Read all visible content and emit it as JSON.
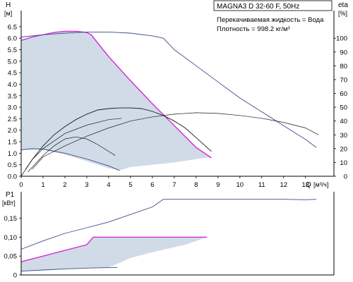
{
  "chart_data": [
    {
      "type": "line",
      "title": "MAGNA3 D 32-60 F, 50Hz",
      "annotations": [
        "Перекачиваемая жидкость = Вода",
        "Плотность = 998.2 кг/м³"
      ],
      "ylabel": "H",
      "yunit": "[м]",
      "xlabel": "Q",
      "xunit": "[м³/ч]",
      "y2label": "eta",
      "y2unit": "[%]",
      "xlim": [
        0,
        14.3
      ],
      "ylim": [
        0,
        7.2
      ],
      "y2lim": [
        0,
        120
      ],
      "xticks": [
        0,
        1,
        2,
        3,
        4,
        5,
        6,
        7,
        8,
        9,
        10,
        11,
        12,
        13
      ],
      "yticks": [
        "0.0",
        "0.5",
        "1.0",
        "1.5",
        "2.0",
        "2.5",
        "3.0",
        "3.5",
        "4.0",
        "4.5",
        "5.0",
        "5.5",
        "6.0",
        "6.5"
      ],
      "y2ticks": [
        0,
        10,
        20,
        30,
        40,
        50,
        60,
        70,
        80,
        90,
        100
      ],
      "grid": false,
      "colors": {
        "operating_area": "#d0dbe7",
        "max_curve": "#d11ed1",
        "pump_curve": "#3a4d8a",
        "eta_curve": "#1a1a1a"
      },
      "series": [
        {
          "role": "operating-area-fill",
          "x": [
            0,
            0.5,
            1,
            1.5,
            2,
            2.5,
            3,
            3.2,
            4,
            5,
            6,
            7,
            8,
            8.7,
            8.4,
            7,
            6,
            5,
            4.5,
            4,
            3,
            2,
            1,
            0
          ],
          "y": [
            5.9,
            6.05,
            6.15,
            6.25,
            6.3,
            6.3,
            6.25,
            6.15,
            5.2,
            4.15,
            3.15,
            2.2,
            1.25,
            0.8,
            0.8,
            0.6,
            0.5,
            0.4,
            0.25,
            0.35,
            0.65,
            0.95,
            1.15,
            1.15
          ]
        },
        {
          "role": "max-curve",
          "x": [
            0,
            0.5,
            1,
            1.5,
            2,
            2.5,
            3,
            3.2,
            4,
            5,
            6,
            7,
            8,
            8.7
          ],
          "y": [
            5.9,
            6.05,
            6.15,
            6.25,
            6.3,
            6.3,
            6.25,
            6.15,
            5.2,
            4.15,
            3.15,
            2.2,
            1.25,
            0.8
          ]
        },
        {
          "role": "pump-curve-max",
          "x": [
            0,
            1,
            2,
            3,
            4,
            5,
            6,
            6.5,
            7,
            8,
            9,
            10,
            11,
            12,
            13,
            13.5
          ],
          "y": [
            6.05,
            6.15,
            6.22,
            6.27,
            6.27,
            6.22,
            6.1,
            6.0,
            5.5,
            4.8,
            4.1,
            3.4,
            2.8,
            2.2,
            1.6,
            1.25
          ]
        },
        {
          "role": "pump-curve-min",
          "x": [
            0,
            0.5,
            1,
            2,
            3,
            4,
            4.5
          ],
          "y": [
            1.15,
            1.2,
            1.18,
            1.0,
            0.75,
            0.45,
            0.25
          ]
        },
        {
          "role": "eta-curve-1",
          "x": [
            0,
            0.5,
            1,
            2,
            3,
            4,
            4.6
          ],
          "y2": [
            0,
            12,
            20,
            31,
            37,
            41,
            42
          ]
        },
        {
          "role": "eta-curve-2",
          "x": [
            0.2,
            0.5,
            1,
            1.5,
            2,
            2.5,
            3,
            3.5,
            4,
            4.5,
            5,
            5.5,
            6,
            6.5,
            7,
            7.5,
            8,
            8.7
          ],
          "y2": [
            5,
            12,
            22,
            30,
            36,
            41,
            45,
            48,
            49,
            49.5,
            49.5,
            49,
            47,
            44,
            40,
            35,
            28,
            18
          ]
        },
        {
          "role": "eta-curve-3",
          "x": [
            0.3,
            1,
            1.5,
            2,
            2.5,
            3,
            3.5,
            4.3
          ],
          "y2": [
            3,
            15,
            22,
            27,
            28.5,
            27,
            23,
            15
          ]
        },
        {
          "role": "eta-curve-4",
          "x": [
            0.5,
            1,
            2,
            3,
            4,
            5,
            6,
            7,
            8,
            9,
            10,
            11,
            12,
            13,
            13.6
          ],
          "y2": [
            5,
            14,
            22,
            29,
            35,
            40,
            43,
            45,
            46,
            45.5,
            44,
            42,
            39,
            35,
            30
          ]
        }
      ]
    },
    {
      "type": "line",
      "ylabel": "P1",
      "yunit": "[кВт]",
      "xlim": [
        0,
        14.3
      ],
      "ylim": [
        0,
        0.22
      ],
      "yticks": [
        "0",
        "0,05",
        "0,10",
        "0,15"
      ],
      "colors": {
        "operating_area": "#d0dbe7",
        "max_curve": "#d11ed1",
        "pump_curve": "#3a4d8a"
      },
      "series": [
        {
          "role": "operating-area-fill",
          "x": [
            0,
            1,
            2,
            3,
            3.3,
            5,
            6,
            7,
            8,
            8.5,
            7.5,
            6,
            5,
            4.5,
            4,
            3,
            2,
            1,
            0
          ],
          "y": [
            0.035,
            0.05,
            0.065,
            0.08,
            0.1,
            0.1,
            0.1,
            0.1,
            0.1,
            0.1,
            0.08,
            0.06,
            0.045,
            0.032,
            0.02,
            0.018,
            0.016,
            0.013,
            0.01
          ]
        },
        {
          "role": "max-curve",
          "x": [
            0,
            1,
            2,
            3,
            3.3,
            5,
            6,
            7,
            8,
            8.5
          ],
          "y": [
            0.035,
            0.05,
            0.065,
            0.08,
            0.1,
            0.1,
            0.1,
            0.1,
            0.1,
            0.1
          ]
        },
        {
          "role": "pump-curve-max",
          "x": [
            0,
            1,
            2,
            3,
            4,
            5,
            6,
            6.5,
            7,
            8,
            9,
            10,
            11,
            12,
            13,
            13.5
          ],
          "y": [
            0.068,
            0.09,
            0.11,
            0.125,
            0.14,
            0.16,
            0.18,
            0.2,
            0.2,
            0.2,
            0.2,
            0.2,
            0.2,
            0.2,
            0.199,
            0.2
          ]
        },
        {
          "role": "pump-curve-min",
          "x": [
            0,
            1,
            2,
            3,
            4.4
          ],
          "y": [
            0.01,
            0.013,
            0.016,
            0.018,
            0.02
          ]
        }
      ]
    }
  ]
}
